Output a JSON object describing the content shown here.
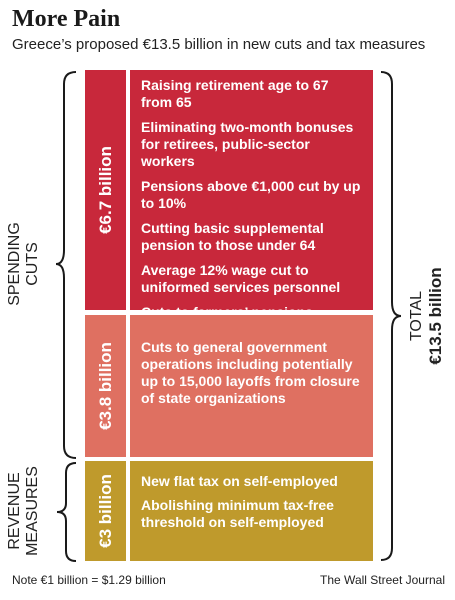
{
  "header": {
    "title": "More Pain",
    "subtitle": "Greece’s proposed €13.5 billion in new cuts and tax measures"
  },
  "groups": {
    "spending": {
      "line1": "SPENDING",
      "line2": "CUTS"
    },
    "revenue": {
      "line1": "REVENUE",
      "line2": "MEASURES"
    }
  },
  "total": {
    "line1": "TOTAL",
    "line2": "€13.5 billion"
  },
  "blocks": [
    {
      "label": "€6.7 billion",
      "color": "#c8283b",
      "items": [
        "Raising retirement age to 67 from 65",
        "Eliminating two-month bonuses for retirees, public-sector workers",
        "Pensions above €1,000 cut by up to 10%",
        "Cutting basic supplemental pension to those under 64",
        "Average 12% wage cut to uniformed services personnel",
        "Cuts to farmers’ pensions"
      ]
    },
    {
      "label": "€3.8 billion",
      "color": "#df7061",
      "items": [
        "Cuts to general government operations including potentially up to 15,000 layoffs from closure of state organizations"
      ]
    },
    {
      "label": "€3 billion",
      "color": "#bf9a2c",
      "items": [
        "New flat tax on self-employed",
        "Abolishing minimum tax-free threshold on self-employed"
      ]
    }
  ],
  "footer": {
    "note": "Note €1 billion = $1.29 billion",
    "credit": "The Wall Street Journal"
  }
}
